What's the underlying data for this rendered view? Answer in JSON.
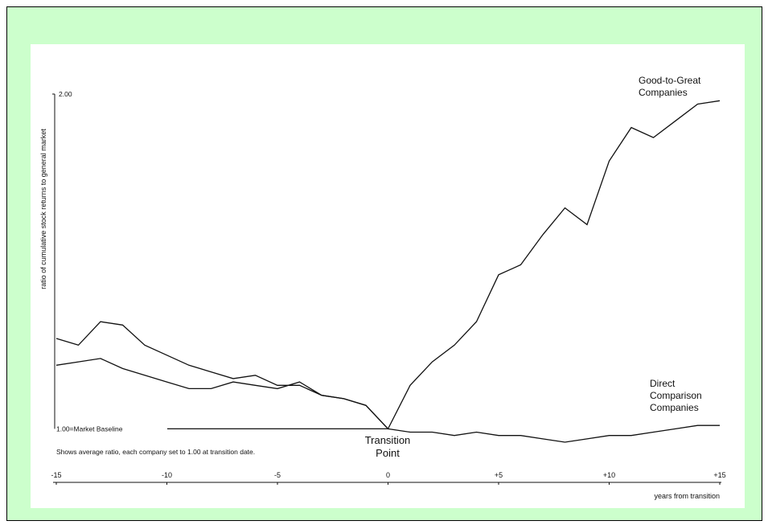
{
  "chart_data": {
    "type": "line",
    "y_label": "ratio of cumulative stock returns to general market",
    "x_label": "years from transition",
    "note": "Shows average ratio, each company set to 1.00 at transition date.",
    "transition_label": [
      "Transition",
      "Point"
    ],
    "x": [
      -15,
      -14,
      -13,
      -12,
      -11,
      -10,
      -9,
      -8,
      -7,
      -6,
      -5,
      -4,
      -3,
      -2,
      -1,
      0,
      1,
      2,
      3,
      4,
      5,
      6,
      7,
      8,
      9,
      10,
      11,
      12,
      13,
      14,
      15
    ],
    "series": [
      {
        "label_lines": [
          "Good-to-Great",
          "Companies"
        ],
        "color": "#111111",
        "values": [
          1.27,
          1.25,
          1.32,
          1.31,
          1.25,
          1.22,
          1.19,
          1.17,
          1.15,
          1.16,
          1.13,
          1.13,
          1.1,
          1.09,
          1.07,
          1.0,
          1.13,
          1.2,
          1.25,
          1.32,
          1.46,
          1.49,
          1.58,
          1.66,
          1.61,
          1.8,
          1.9,
          1.87,
          1.92,
          1.97,
          1.98
        ]
      },
      {
        "label_lines": [
          "Direct",
          "Comparison",
          "Companies"
        ],
        "color": "#111111",
        "values": [
          1.19,
          1.2,
          1.21,
          1.18,
          1.16,
          1.14,
          1.12,
          1.12,
          1.14,
          1.13,
          1.12,
          1.14,
          1.1,
          1.09,
          1.07,
          1.0,
          0.99,
          0.99,
          0.98,
          0.99,
          0.98,
          0.98,
          0.97,
          0.96,
          0.97,
          0.98,
          0.98,
          0.99,
          1.0,
          1.01,
          1.01
        ]
      }
    ],
    "xlim": [
      -15,
      15
    ],
    "ylim": [
      0.84,
      2.0
    ],
    "xticks": [
      -15,
      -10,
      -5,
      0,
      {
        "value": 5,
        "label": "+5"
      },
      {
        "value": 10,
        "label": "+10"
      },
      {
        "value": 15,
        "label": "+15"
      }
    ],
    "yticks": [
      {
        "value": 1,
        "label": "1.00=Market Baseline"
      },
      {
        "value": 2,
        "label": "2.00"
      }
    ]
  }
}
